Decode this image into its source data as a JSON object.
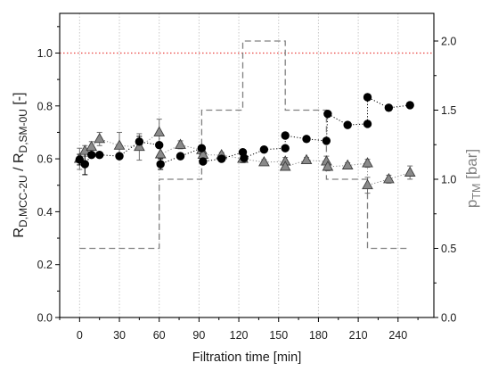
{
  "chart_data": {
    "type": "scatter",
    "xlabel": "Filtration time [min]",
    "ylabel_left": [
      "R",
      "D,MCC-2U",
      " / R",
      "D,SM-0U",
      " [-]"
    ],
    "ylabel_right": [
      "p",
      "TM",
      " [bar]"
    ],
    "ylabel_right_color": "#808080",
    "xticks": [
      "0",
      "30",
      "60",
      "90",
      "120",
      "150",
      "180",
      "210",
      "240"
    ],
    "yticks_left": [
      "0.0",
      "0.2",
      "0.4",
      "0.6",
      "0.8",
      "1.0"
    ],
    "yticks_right": [
      "0.0",
      "0.5",
      "1.0",
      "1.5",
      "2.0"
    ],
    "xlim": [
      -15,
      267
    ],
    "ylim_left": [
      0,
      1.15
    ],
    "ylim_right": [
      0,
      2.2
    ],
    "grid": {
      "x": true,
      "y": false,
      "color": "#c8c8c8",
      "style": "dotted"
    },
    "reference_line": {
      "axis": "left",
      "y": 1.0,
      "color": "#e8423f",
      "style": "dotted"
    },
    "series": [
      {
        "axis": "left",
        "marker": "triangle",
        "color": "#8a8a8a",
        "edge_color": "#3c3c3c",
        "line": "dotted",
        "x": [
          0,
          4,
          9,
          15,
          30,
          45,
          60,
          61,
          76,
          92,
          93,
          107,
          123,
          139,
          155,
          155,
          171,
          186,
          187,
          202,
          217,
          217,
          233,
          249
        ],
        "y": [
          0.6,
          0.63,
          0.645,
          0.675,
          0.65,
          0.645,
          0.7,
          0.617,
          0.653,
          0.633,
          0.615,
          0.614,
          0.6,
          0.587,
          0.59,
          0.57,
          0.595,
          0.59,
          0.57,
          0.575,
          0.583,
          0.5,
          0.523,
          0.548
        ],
        "err": [
          0.04,
          0.02,
          0.02,
          0.025,
          0.05,
          0.05,
          0.05,
          0.03,
          0.015,
          0.015,
          0.01,
          0.01,
          0.015,
          0.01,
          0.015,
          0.01,
          0.01,
          0.02,
          0.015,
          0.01,
          0.015,
          0.03,
          0.015,
          0.025
        ]
      },
      {
        "axis": "left",
        "marker": "circle",
        "color": "#000000",
        "line": "dotted",
        "x": [
          0,
          4,
          9,
          15,
          30,
          45,
          60,
          61,
          76,
          92,
          93,
          107,
          123,
          124,
          139,
          155,
          155,
          171,
          186,
          187,
          202,
          217,
          217,
          233,
          249
        ],
        "y": [
          0.597,
          0.58,
          0.615,
          0.615,
          0.61,
          0.665,
          0.652,
          0.58,
          0.61,
          0.64,
          0.59,
          0.6,
          0.625,
          0.603,
          0.635,
          0.64,
          0.688,
          0.675,
          0.668,
          0.77,
          0.728,
          0.732,
          0.833,
          0.793,
          0.803
        ],
        "err": [
          0.02,
          0.04,
          0,
          0,
          0,
          0.02,
          0,
          0.02,
          0,
          0,
          0,
          0,
          0,
          0,
          0,
          0,
          0,
          0,
          0,
          0,
          0,
          0,
          0,
          0,
          0
        ]
      },
      {
        "axis": "right",
        "marker": "none",
        "color": "#808080",
        "line": "dashed",
        "x": [
          0,
          60,
          60,
          92,
          92,
          123,
          123,
          155,
          155,
          186,
          186,
          217,
          217,
          249
        ],
        "y": [
          0.5,
          0.5,
          1.0,
          1.0,
          1.5,
          1.5,
          2.0,
          2.0,
          1.5,
          1.5,
          1.0,
          1.0,
          0.5,
          0.5
        ]
      }
    ]
  }
}
